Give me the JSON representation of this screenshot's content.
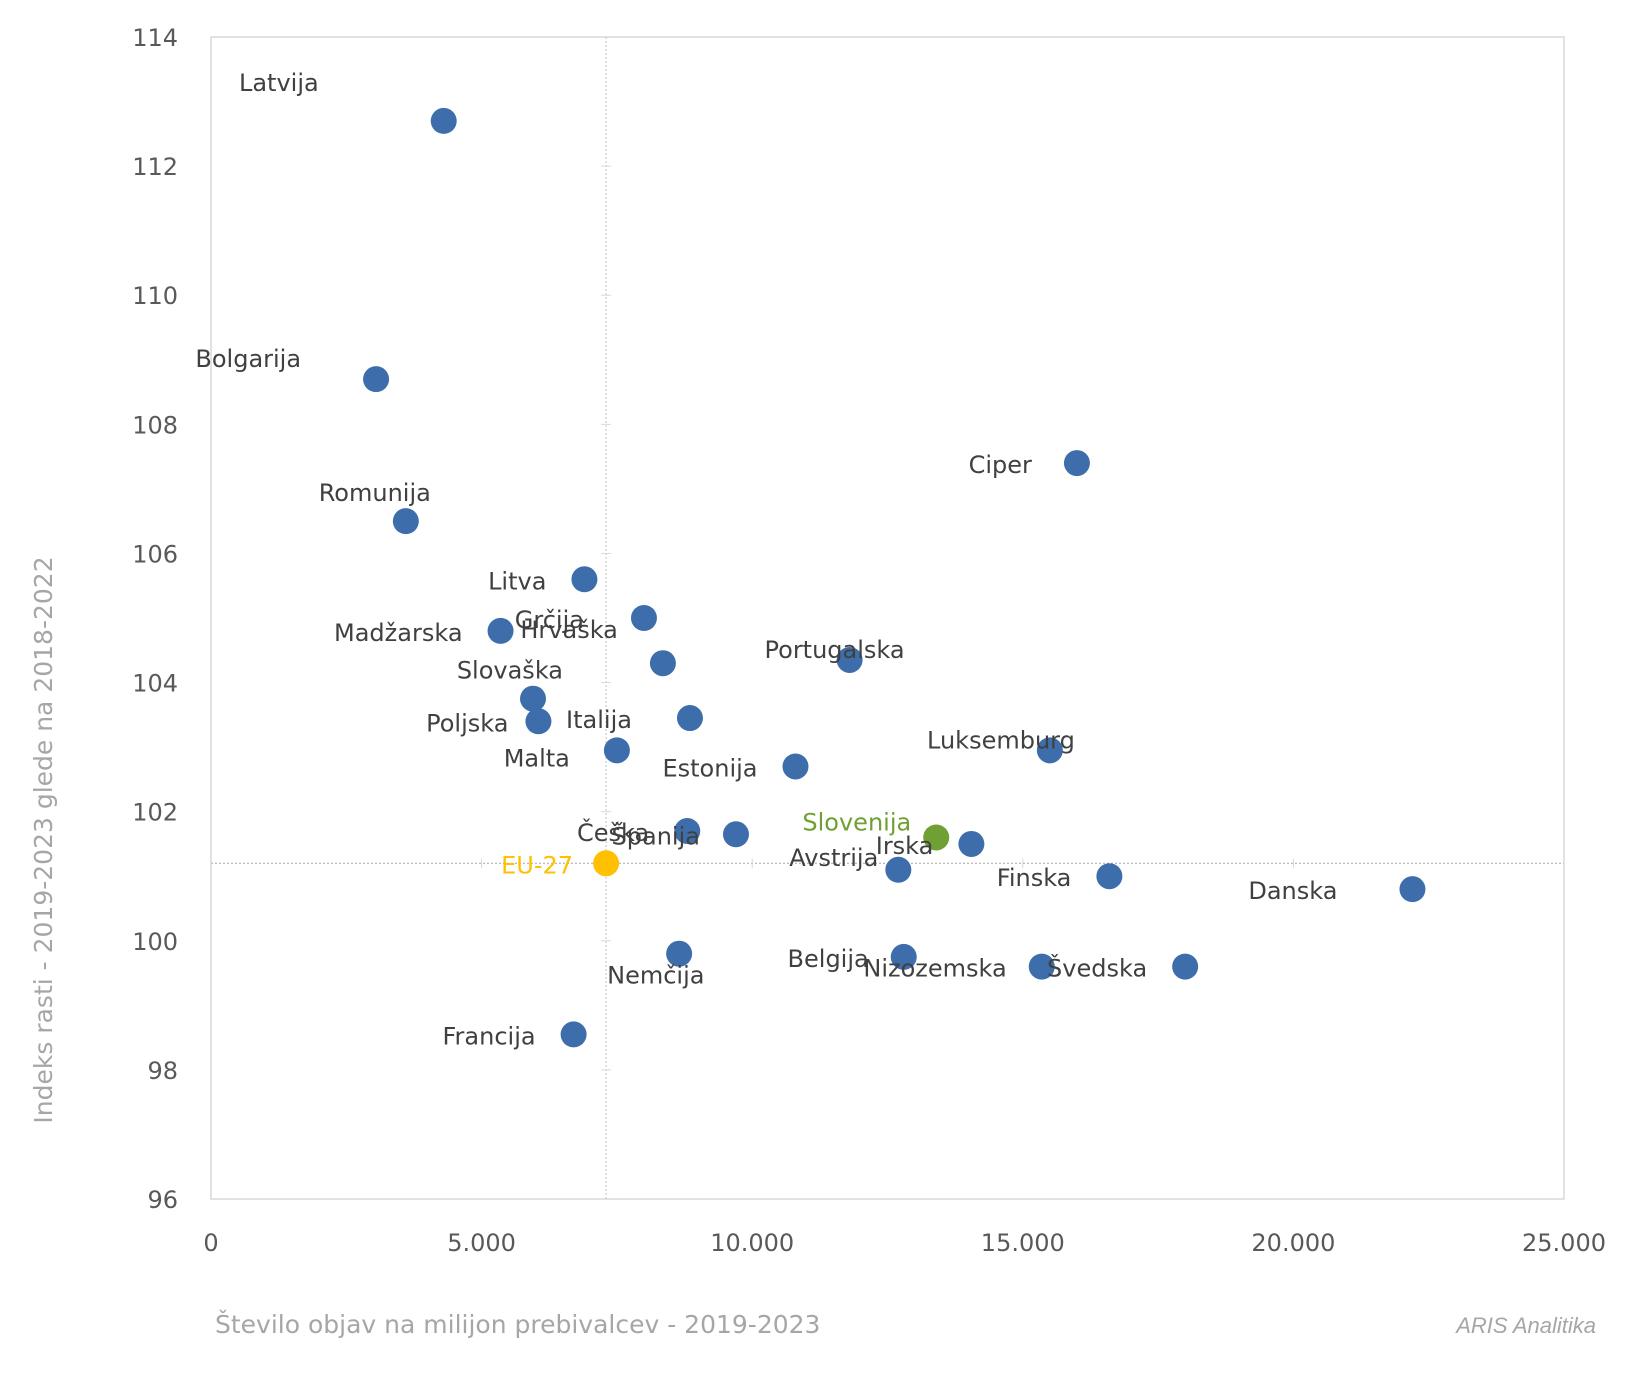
{
  "chart_data": {
    "type": "scatter",
    "title": "",
    "xlabel": "Število objav na milijon prebivalcev - 2019-2023",
    "ylabel": "Indeks rasti - 2019-2023 glede na 2018-2022",
    "xlim": [
      0,
      25000
    ],
    "ylim": [
      96,
      114
    ],
    "x_ticks": [
      "0",
      "5.000",
      "10.000",
      "15.000",
      "20.000",
      "25.000"
    ],
    "y_ticks": [
      "96",
      "98",
      "100",
      "102",
      "104",
      "106",
      "108",
      "110",
      "112",
      "114"
    ],
    "grid": false,
    "reference_lines": {
      "x": 7300,
      "y": 101.2
    },
    "colors": {
      "country": "#3d6eab",
      "slovenia": "#70a033",
      "eu": "#ffc000"
    },
    "points": [
      {
        "label": "Latvija",
        "x": 4300,
        "y": 112.7,
        "group": "country"
      },
      {
        "label": "Bolgarija",
        "x": 3050,
        "y": 108.7,
        "group": "country"
      },
      {
        "label": "Romunija",
        "x": 3600,
        "y": 106.5,
        "group": "country"
      },
      {
        "label": "Ciper",
        "x": 16000,
        "y": 107.4,
        "group": "country"
      },
      {
        "label": "Litva",
        "x": 6900,
        "y": 105.6,
        "group": "country"
      },
      {
        "label": "Grčija",
        "x": 8000,
        "y": 105.0,
        "group": "country"
      },
      {
        "label": "Madžarska",
        "x": 5350,
        "y": 104.8,
        "group": "country"
      },
      {
        "label": "Hrvaška",
        "x": 8350,
        "y": 104.3,
        "group": "country"
      },
      {
        "label": "Portugalska",
        "x": 11800,
        "y": 104.35,
        "group": "country"
      },
      {
        "label": "Slovaška",
        "x": 5950,
        "y": 103.75,
        "group": "country"
      },
      {
        "label": "Poljska",
        "x": 6050,
        "y": 103.4,
        "group": "country"
      },
      {
        "label": "Italija",
        "x": 8850,
        "y": 103.45,
        "group": "country"
      },
      {
        "label": "Malta",
        "x": 7500,
        "y": 102.95,
        "group": "country"
      },
      {
        "label": "Estonija",
        "x": 10800,
        "y": 102.7,
        "group": "country"
      },
      {
        "label": "Luksemburg",
        "x": 15500,
        "y": 102.95,
        "group": "country"
      },
      {
        "label": "Češka",
        "x": 8800,
        "y": 101.7,
        "group": "country"
      },
      {
        "label": "Španija",
        "x": 9700,
        "y": 101.65,
        "group": "country"
      },
      {
        "label": "Slovenija",
        "x": 13400,
        "y": 101.6,
        "group": "slovenia"
      },
      {
        "label": "Irska",
        "x": 14050,
        "y": 101.5,
        "group": "country"
      },
      {
        "label": "Avstrija",
        "x": 12700,
        "y": 101.1,
        "group": "country"
      },
      {
        "label": "EU-27",
        "x": 7300,
        "y": 101.2,
        "group": "eu"
      },
      {
        "label": "Finska",
        "x": 16600,
        "y": 101.0,
        "group": "country"
      },
      {
        "label": "Danska",
        "x": 22200,
        "y": 100.8,
        "group": "country"
      },
      {
        "label": "Nemčija",
        "x": 8650,
        "y": 99.8,
        "group": "country"
      },
      {
        "label": "Belgija",
        "x": 12800,
        "y": 99.75,
        "group": "country"
      },
      {
        "label": "Nizozemska",
        "x": 15350,
        "y": 99.6,
        "group": "country"
      },
      {
        "label": "Švedska",
        "x": 18000,
        "y": 99.6,
        "group": "country"
      },
      {
        "label": "Francija",
        "x": 6700,
        "y": 98.55,
        "group": "country"
      }
    ]
  },
  "credit": "ARIS Analitika"
}
